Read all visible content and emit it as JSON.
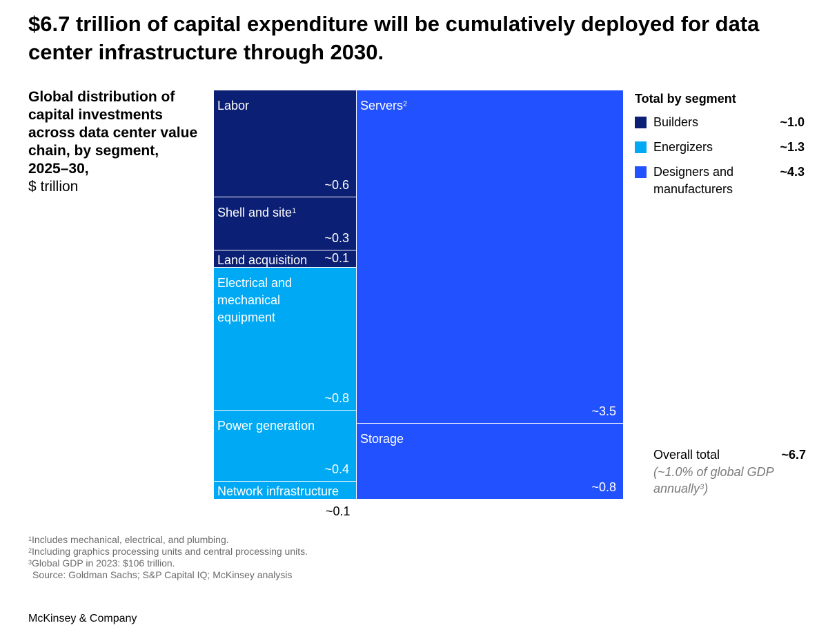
{
  "title": "$6.7 trillion of capital expenditure will be cumulatively deployed for data center infrastructure through 2030.",
  "subtitle": {
    "bold": "Global distribution of capital investments across data center value chain, by segment, 2025–30,",
    "unit": "$ trillion"
  },
  "colors": {
    "builders": "#0b1f74",
    "energizers": "#00a9f4",
    "designers": "#2251ff",
    "divider": "#ffffff"
  },
  "chart_data": {
    "type": "treemap",
    "units": "$ trillion",
    "cells": [
      {
        "label": "Labor",
        "value_label": "~0.6",
        "value": 0.6,
        "segment": "Builders"
      },
      {
        "label": "Shell and site",
        "footnote": "1",
        "value_label": "~0.3",
        "value": 0.3,
        "segment": "Builders"
      },
      {
        "label": "Land acquisition",
        "value_label": "~0.1",
        "value": 0.1,
        "segment": "Builders"
      },
      {
        "label": "Electrical and mechanical equipment",
        "value_label": "~0.8",
        "value": 0.8,
        "segment": "Energizers"
      },
      {
        "label": "Power generation",
        "value_label": "~0.4",
        "value": 0.4,
        "segment": "Energizers"
      },
      {
        "label": "Network infrastructure",
        "value_label": "~0.1",
        "value": 0.1,
        "segment": "Energizers"
      },
      {
        "label": "Servers",
        "footnote": "2",
        "value_label": "~3.5",
        "value": 3.5,
        "segment": "Designers and manufacturers"
      },
      {
        "label": "Storage",
        "value_label": "~0.8",
        "value": 0.8,
        "segment": "Designers and manufacturers"
      }
    ],
    "legend": {
      "title": "Total by segment",
      "items": [
        {
          "label": "Builders",
          "value_label": "~1.0",
          "value": 1.0,
          "color": "#0b1f74"
        },
        {
          "label": "Energizers",
          "value_label": "~1.3",
          "value": 1.3,
          "color": "#00a9f4"
        },
        {
          "label": "Designers and manufacturers",
          "value_label": "~4.3",
          "value": 4.3,
          "color": "#2251ff"
        }
      ]
    },
    "overall": {
      "label": "Overall total",
      "value_label": "~6.7",
      "value": 6.7,
      "note": "(~1.0% of global GDP annually",
      "note_footnote": "3",
      "note_close": ")"
    }
  },
  "footnotes": [
    {
      "mark": "1",
      "text": "Includes mechanical, electrical, and plumbing."
    },
    {
      "mark": "2",
      "text": "Including graphics processing units and central processing units."
    },
    {
      "mark": "3",
      "text": "Global GDP in 2023: $106 trillion."
    }
  ],
  "source": "Source: Goldman Sachs; S&P Capital IQ; McKinsey analysis",
  "brand": "McKinsey & Company"
}
